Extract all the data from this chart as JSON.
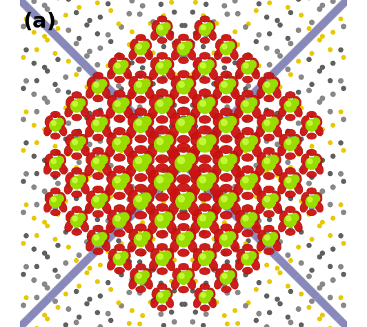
{
  "label": "(a)",
  "label_fontsize": 22,
  "label_fontweight": "bold",
  "background_color": "#ffffff",
  "figsize": [
    5.32,
    4.74
  ],
  "dpi": 100,
  "colors": {
    "gray_chain": "#888888",
    "gray_chain_dark": "#606060",
    "yellow_chain": "#E8C800",
    "blue_layer": "#8888BB",
    "blue_layer_light": "#AAAADD",
    "red_ellipsoid": "#CC1111",
    "red_ellipsoid_dark": "#991100",
    "green_sphere": "#99DD00",
    "green_sphere_light": "#CCFF44",
    "background": "#ffffff"
  },
  "img_xlim": [
    -1.0,
    1.0
  ],
  "img_ylim": [
    -1.0,
    1.0
  ]
}
